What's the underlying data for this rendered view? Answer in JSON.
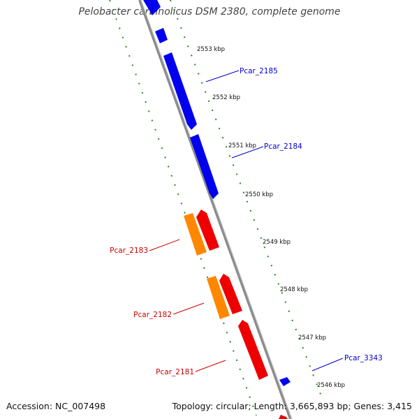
{
  "title": "Pelobacter carbinolicus DSM 2380, complete genome",
  "footer": {
    "accession": "Accession: NC_007498",
    "topology": "Topology: circular; Length: 3,665,893 bp; Genes: 3,415"
  },
  "colors": {
    "backbone": "#888888",
    "tick_track": "#228822",
    "forward_gene": "#0000ee",
    "reverse_gene": "#ee0000",
    "rna_gene": "#ff8800",
    "forward_label": "#0000cc",
    "reverse_label": "#cc0000",
    "scale_label": "#111111"
  },
  "scale_marks": [
    {
      "kbp": 2553,
      "label": "2553 kbp"
    },
    {
      "kbp": 2552,
      "label": "2552 kbp"
    },
    {
      "kbp": 2551,
      "label": "2551 kbp"
    },
    {
      "kbp": 2550,
      "label": "2550 kbp"
    },
    {
      "kbp": 2549,
      "label": "2549 kbp"
    },
    {
      "kbp": 2548,
      "label": "2548 kbp"
    },
    {
      "kbp": 2547,
      "label": "2547 kbp"
    },
    {
      "kbp": 2546,
      "label": "2546 kbp"
    }
  ],
  "gene_labels": [
    {
      "label": "Pcar_2185",
      "strand": "forward"
    },
    {
      "label": "Pcar_2184",
      "strand": "forward"
    },
    {
      "label": "Pcar_3343",
      "strand": "forward"
    },
    {
      "label": "Pcar_2183",
      "strand": "reverse"
    },
    {
      "label": "Pcar_2182",
      "strand": "reverse"
    },
    {
      "label": "Pcar_2181",
      "strand": "reverse"
    }
  ]
}
